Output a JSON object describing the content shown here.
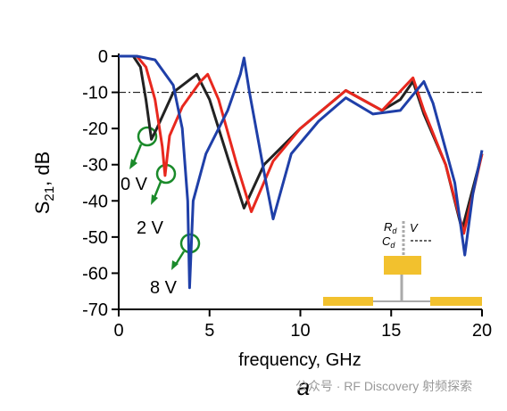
{
  "chart_data": {
    "type": "line",
    "x_label": "frequency, GHz",
    "y_label": {
      "main": "S",
      "sub": "21",
      "rest": ", dB"
    },
    "panel_label": "a",
    "watermark": "公众号 · RF Discovery 射频探索",
    "xlim": [
      0,
      20
    ],
    "xticks": [
      0,
      5,
      10,
      15,
      20
    ],
    "ylim": [
      -70,
      0
    ],
    "yticks": [
      -70,
      -60,
      -50,
      -40,
      -30,
      -20,
      -10,
      0
    ],
    "hline": -10,
    "inset": {
      "r": "R",
      "r_sub": "d",
      "v": "V",
      "c": "C",
      "c_sub": "d"
    },
    "series": [
      {
        "name": "0 V",
        "color": "#222222",
        "x": [
          0,
          0.8,
          1.2,
          1.5,
          1.8,
          2.1,
          3,
          4.3,
          5,
          6,
          6.9,
          8,
          10,
          12.5,
          14.5,
          15.5,
          16.2,
          16.8,
          18,
          18.9,
          20
        ],
        "values": [
          0,
          0,
          -3,
          -12,
          -23,
          -20,
          -10,
          -5,
          -12,
          -28,
          -42,
          -30,
          -20,
          -9.5,
          -15,
          -12,
          -7,
          -16,
          -30,
          -48,
          -27
        ]
      },
      {
        "name": "2 V",
        "color": "#e8281e",
        "x": [
          0,
          1,
          1.5,
          2,
          2.4,
          2.55,
          2.8,
          3.5,
          4.5,
          4.9,
          5.5,
          6.5,
          7.3,
          8.5,
          10,
          12.5,
          14.5,
          16.2,
          16.8,
          18,
          19,
          20
        ],
        "values": [
          0,
          0,
          -3,
          -12,
          -25,
          -33,
          -22,
          -14,
          -7,
          -5,
          -12,
          -30,
          -43,
          -29,
          -20,
          -9.5,
          -15,
          -6,
          -15,
          -30,
          -49,
          -27
        ]
      },
      {
        "name": "8 V",
        "color": "#1f3fa8",
        "x": [
          0,
          1,
          2,
          3,
          3.5,
          3.8,
          3.9,
          4.1,
          4.8,
          6,
          6.7,
          6.9,
          7.2,
          8,
          8.5,
          9.5,
          11,
          12.5,
          14,
          15.5,
          16.8,
          17.3,
          18.5,
          19.05,
          19.5,
          20
        ],
        "values": [
          0,
          0,
          -1,
          -8,
          -20,
          -40,
          -64,
          -40,
          -27,
          -15,
          -5,
          -0.5,
          -10,
          -32,
          -45,
          -27,
          -18,
          -11.5,
          -16,
          -15,
          -7,
          -13,
          -35,
          -55,
          -38,
          -26
        ]
      }
    ]
  }
}
